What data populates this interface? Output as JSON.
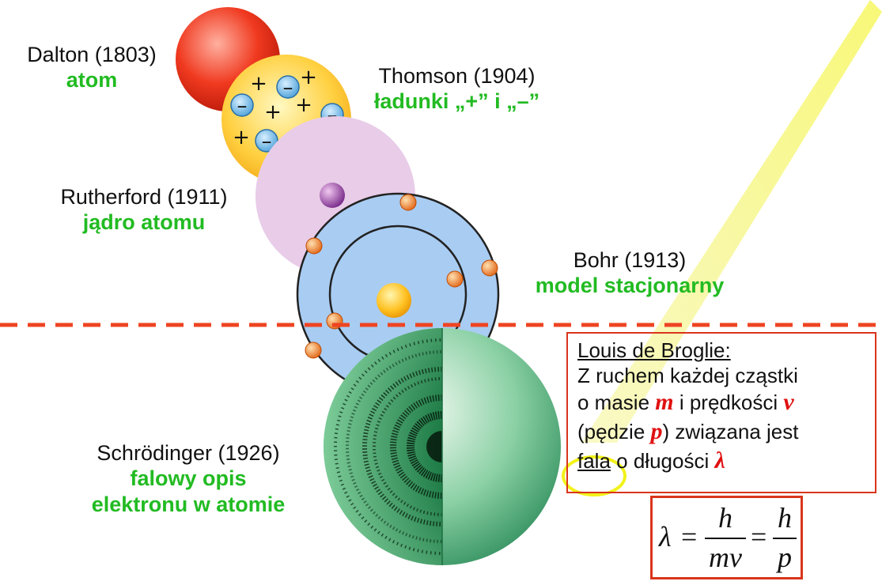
{
  "models": [
    {
      "name": "Dalton (1803)",
      "desc": "atom"
    },
    {
      "name": "Thomson (1904)",
      "desc": "ładunki „+” i „–”"
    },
    {
      "name": "Rutherford (1911)",
      "desc": "jądro atomu"
    },
    {
      "name": "Bohr (1913)",
      "desc": "model stacjonarny"
    },
    {
      "name": "Schrödinger (1926)",
      "desc_line1": "falowy opis",
      "desc_line2": "elektronu w atomie"
    }
  ],
  "thomson_charges": {
    "plus": "+",
    "minus": "–"
  },
  "broglie": {
    "title": "Louis de Broglie:",
    "line1": "Z ruchem każdej cząstki",
    "line2_a": "o masie ",
    "mass_symbol": "m",
    "line2_b": " i prędkości ",
    "velocity_symbol": "v",
    "line3_a": "(pędzie ",
    "momentum_symbol": "p",
    "line3_b": ") związana jest",
    "wave_word": "fala",
    "line4_b": " o długości ",
    "lambda_symbol": "λ"
  },
  "formula": {
    "lambda": "λ",
    "eq1": "=",
    "num1": "h",
    "den1": "mv",
    "eq2": "=",
    "num2": "h",
    "den2": "p"
  },
  "colors": {
    "divider": "#ee4422",
    "label_green": "#22bb22",
    "box_border": "#d9351c",
    "symbol_red": "#e01010",
    "highlight_yellow": "#f2f21a"
  }
}
